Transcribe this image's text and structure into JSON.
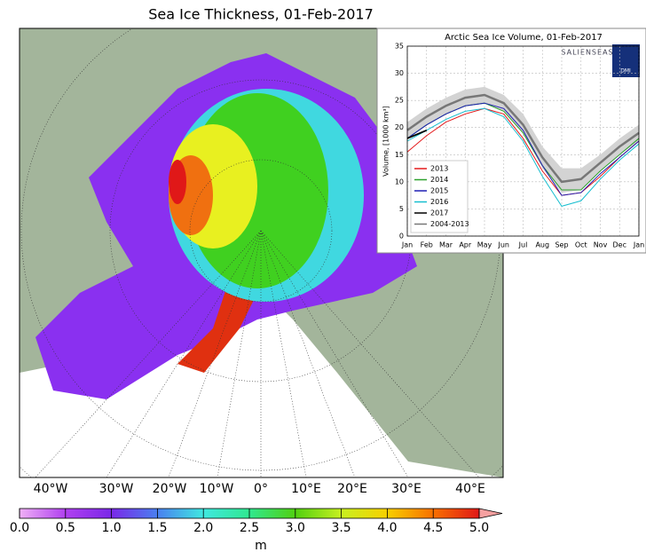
{
  "title": "Sea Ice Thickness, 01-Feb-2017",
  "map": {
    "lon_labels": [
      "40°W",
      "30°W",
      "20°W",
      "10°W",
      "0°",
      "10°E",
      "20°E",
      "30°E",
      "40°E"
    ]
  },
  "colorbar": {
    "label": "m",
    "min": 0,
    "max": 5,
    "ticks": [
      {
        "value": 0,
        "label": "0.0"
      },
      0.5,
      {
        "value": 1,
        "label": "1.0"
      },
      1.5,
      {
        "value": 2,
        "label": "2.0"
      },
      2.5,
      {
        "value": 3,
        "label": "3.0"
      },
      3.5,
      {
        "value": 4,
        "label": "4.0"
      },
      4.5,
      {
        "value": 5,
        "label": "5.0"
      }
    ],
    "colors": [
      "#efb0f5",
      "#b040f0",
      "#7a28e8",
      "#4a80f0",
      "#40e8e0",
      "#30e890",
      "#50d010",
      "#c8f020",
      "#f8d000",
      "#f87000",
      "#e01818"
    ],
    "extend_color": "#f5a0a0"
  },
  "chart_data": {
    "type": "line",
    "title": "Arctic Sea Ice Volume, 01-Feb-2017",
    "y_label": "Volume, [1000 km³]",
    "logo_text": "SALIENSEAS",
    "logo_badge": "DMI",
    "categories": [
      "Jan",
      "Feb",
      "Mar",
      "Apr",
      "May",
      "Jun",
      "Jul",
      "Aug",
      "Sep",
      "Oct",
      "Nov",
      "Dec",
      "Jan"
    ],
    "ylim": [
      0,
      35
    ],
    "yticks": [
      0,
      5,
      10,
      15,
      20,
      25,
      30,
      35
    ],
    "grid": true,
    "legend": "lower left",
    "band": {
      "color": "#d3d3d3",
      "lower": [
        18,
        20.5,
        22.5,
        24,
        24.5,
        23,
        19,
        12.5,
        8,
        8.5,
        12,
        15,
        17.5
      ],
      "upper": [
        21,
        23.5,
        25.5,
        27,
        27.5,
        26,
        22.5,
        16.5,
        12.5,
        12.5,
        15,
        18,
        20.5
      ]
    },
    "series": [
      {
        "name": "2013",
        "color": "#e41a1c",
        "values": [
          15.5,
          18.5,
          21,
          22.5,
          23.5,
          22.5,
          18,
          12,
          7.5,
          8,
          11,
          14.5,
          17.5
        ]
      },
      {
        "name": "2014",
        "color": "#2ca02c",
        "values": [
          18,
          20.5,
          22.5,
          24,
          24.5,
          23,
          19,
          13,
          8.5,
          8.5,
          12,
          15,
          18
        ]
      },
      {
        "name": "2015",
        "color": "#1f1fb4",
        "values": [
          18,
          20.5,
          22.5,
          24,
          24.5,
          23.5,
          19.5,
          13,
          7.5,
          8,
          11.5,
          14.5,
          17.5
        ]
      },
      {
        "name": "2016",
        "color": "#17becf",
        "values": [
          17.5,
          19.5,
          21.5,
          23,
          23.5,
          22,
          17.5,
          11,
          5.5,
          6.5,
          10.5,
          14,
          17
        ]
      },
      {
        "name": "2017",
        "color": "#000000",
        "values": [
          18,
          19.5,
          null,
          null,
          null,
          null,
          null,
          null,
          null,
          null,
          null,
          null,
          null
        ]
      },
      {
        "name": "2004-2013",
        "color": "#777777",
        "values": [
          19.5,
          22,
          24,
          25.5,
          26,
          24.5,
          20.5,
          14.5,
          10,
          10.5,
          13.5,
          16.5,
          19
        ]
      }
    ]
  }
}
